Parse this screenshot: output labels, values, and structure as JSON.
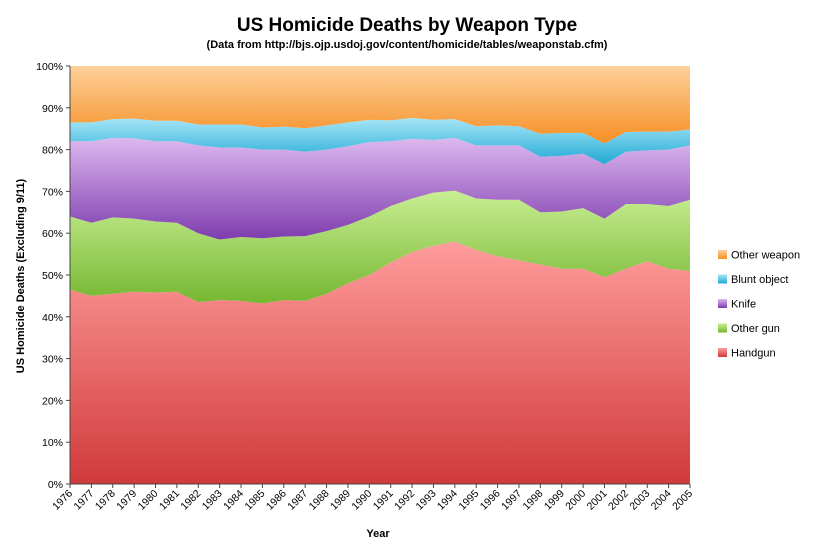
{
  "chart_data": {
    "type": "area",
    "stacked": true,
    "percent": true,
    "title": "US Homicide Deaths by Weapon Type",
    "subtitle": "(Data from http://bjs.ojp.usdoj.gov/content/homicide/tables/weaponstab.cfm)",
    "xlabel": "Year",
    "ylabel": "US Homicide Deaths (Excluding 9/11)",
    "ylim": [
      0,
      100
    ],
    "yticks": [
      "0%",
      "10%",
      "20%",
      "30%",
      "40%",
      "50%",
      "60%",
      "70%",
      "80%",
      "90%",
      "100%"
    ],
    "categories": [
      "1976",
      "1977",
      "1978",
      "1979",
      "1980",
      "1981",
      "1982",
      "1983",
      "1984",
      "1985",
      "1986",
      "1987",
      "1988",
      "1989",
      "1990",
      "1991",
      "1992",
      "1993",
      "1994",
      "1995",
      "1996",
      "1997",
      "1998",
      "1999",
      "2000",
      "2001",
      "2002",
      "2003",
      "2004",
      "2005"
    ],
    "legend_position": "right",
    "series": [
      {
        "name": "Handgun",
        "color_top": "#ff9c9c",
        "color_bottom": "#d13a3a",
        "values": [
          46.5,
          45.0,
          45.5,
          46.0,
          45.8,
          46.0,
          43.5,
          44.0,
          43.8,
          43.2,
          44.0,
          43.8,
          45.5,
          48.0,
          50.0,
          53.0,
          55.5,
          57.0,
          58.0,
          56.0,
          54.5,
          53.5,
          52.5,
          51.5,
          51.5,
          49.5,
          51.5,
          53.3,
          51.5,
          51.0
        ]
      },
      {
        "name": "Other gun",
        "color_top": "#c9ee93",
        "color_bottom": "#75b731",
        "values": [
          17.5,
          17.5,
          18.3,
          17.5,
          17.0,
          16.5,
          16.5,
          14.5,
          15.3,
          15.6,
          15.2,
          15.5,
          15.0,
          14.0,
          14.0,
          13.5,
          12.8,
          12.7,
          12.2,
          12.3,
          13.5,
          14.5,
          12.5,
          13.7,
          14.5,
          14.0,
          15.5,
          13.7,
          15.0,
          17.0
        ]
      },
      {
        "name": "Knife",
        "color_top": "#ddb8ef",
        "color_bottom": "#7e3cae",
        "values": [
          18.0,
          19.5,
          19.0,
          19.2,
          19.2,
          19.5,
          21.0,
          22.0,
          21.4,
          21.2,
          20.8,
          20.2,
          19.5,
          18.8,
          17.8,
          15.5,
          14.3,
          12.6,
          12.6,
          12.7,
          13.0,
          13.0,
          13.3,
          13.3,
          13.0,
          13.0,
          12.5,
          12.8,
          13.5,
          13.0
        ]
      },
      {
        "name": "Blunt object",
        "color_top": "#a6e6f7",
        "color_bottom": "#21a9d4",
        "values": [
          4.5,
          4.5,
          4.5,
          4.7,
          4.9,
          4.9,
          5.0,
          5.5,
          5.5,
          5.3,
          5.5,
          5.6,
          5.8,
          5.7,
          5.3,
          5.0,
          5.0,
          4.8,
          4.5,
          4.6,
          4.8,
          4.6,
          5.5,
          5.5,
          5.0,
          5.0,
          4.7,
          4.5,
          4.3,
          3.8
        ]
      },
      {
        "name": "Other weapon",
        "color_top": "#fdd09b",
        "color_bottom": "#f68f23",
        "values": [
          13.5,
          13.5,
          12.7,
          12.6,
          13.1,
          13.1,
          14.0,
          14.0,
          14.0,
          14.7,
          14.5,
          14.9,
          14.2,
          13.5,
          12.9,
          13.0,
          12.4,
          12.9,
          12.7,
          14.4,
          14.2,
          14.4,
          16.2,
          16.0,
          16.0,
          18.5,
          15.8,
          15.7,
          15.7,
          15.2
        ]
      }
    ]
  }
}
